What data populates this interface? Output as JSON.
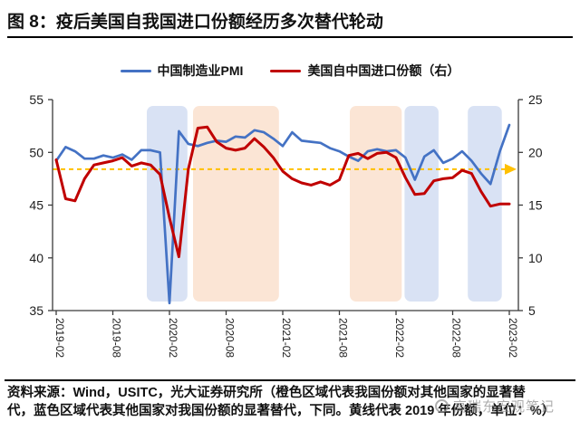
{
  "header": {
    "title": "图 8：疫后美国自我国进口份额经历多次替代轮动"
  },
  "legend": [
    {
      "label": "中国制造业PMI",
      "color": "#4472C4"
    },
    {
      "label": "美国自中国进口份额（右）",
      "color": "#C00000"
    }
  ],
  "footer": {
    "source_line1": "资料来源：Wind，USITC，光大证券研究所（橙色区域代表我国份额对其他国家的显著替",
    "source_line2": "代，蓝色区域代表其他国家对我国份额的显著替代，下同。黄线代表 2019 年份额，单位：%）"
  },
  "watermark": {
    "text": "高瑞东宏观笔记"
  },
  "chart_data": {
    "type": "line",
    "x": [
      "2019-02",
      "2019-03",
      "2019-04",
      "2019-05",
      "2019-06",
      "2019-07",
      "2019-08",
      "2019-09",
      "2019-10",
      "2019-11",
      "2019-12",
      "2020-01",
      "2020-02",
      "2020-03",
      "2020-04",
      "2020-05",
      "2020-06",
      "2020-07",
      "2020-08",
      "2020-09",
      "2020-10",
      "2020-11",
      "2020-12",
      "2021-01",
      "2021-02",
      "2021-03",
      "2021-04",
      "2021-05",
      "2021-06",
      "2021-07",
      "2021-08",
      "2021-09",
      "2021-10",
      "2021-11",
      "2021-12",
      "2022-01",
      "2022-02",
      "2022-03",
      "2022-04",
      "2022-05",
      "2022-06",
      "2022-07",
      "2022-08",
      "2022-09",
      "2022-10",
      "2022-11",
      "2022-12",
      "2023-01",
      "2023-02"
    ],
    "x_ticks": [
      "2019-02",
      "2019-08",
      "2020-02",
      "2020-08",
      "2021-02",
      "2021-08",
      "2022-02",
      "2022-08",
      "2023-02"
    ],
    "series": [
      {
        "name": "中国制造业PMI",
        "axis": "left",
        "color": "#4472C4",
        "values": [
          49.2,
          50.5,
          50.1,
          49.4,
          49.4,
          49.7,
          49.5,
          49.8,
          49.3,
          50.2,
          50.2,
          50.0,
          35.7,
          52.0,
          50.8,
          50.6,
          50.9,
          51.1,
          51.0,
          51.5,
          51.4,
          52.1,
          51.9,
          51.3,
          50.6,
          51.9,
          51.1,
          51.0,
          50.9,
          50.4,
          50.1,
          49.6,
          49.2,
          50.1,
          50.3,
          50.1,
          50.2,
          49.5,
          47.4,
          49.6,
          50.2,
          49.0,
          49.4,
          50.1,
          49.2,
          48.0,
          47.0,
          50.1,
          52.6
        ]
      },
      {
        "name": "美国自中国进口份额（右）",
        "axis": "right",
        "color": "#C00000",
        "values": [
          19.3,
          15.6,
          15.4,
          17.5,
          18.8,
          19.0,
          19.2,
          19.5,
          18.7,
          19.0,
          18.8,
          17.9,
          13.8,
          10.1,
          18.4,
          22.3,
          22.4,
          21.0,
          20.4,
          20.2,
          20.4,
          21.3,
          20.5,
          19.5,
          18.2,
          17.5,
          17.1,
          16.9,
          17.2,
          16.9,
          17.4,
          19.7,
          19.9,
          19.4,
          19.9,
          20.0,
          19.5,
          17.6,
          16.0,
          16.1,
          17.3,
          17.5,
          17.6,
          18.3,
          18.0,
          16.3,
          14.9,
          15.1,
          15.1
        ]
      }
    ],
    "left_axis": {
      "min": 35,
      "max": 55,
      "step": 5,
      "ticks": [
        55,
        50,
        45,
        40,
        35
      ]
    },
    "right_axis": {
      "min": 5,
      "max": 25,
      "step": 5,
      "ticks": [
        25,
        20,
        15,
        10,
        5
      ]
    },
    "baseline": {
      "value": 18.4,
      "axis": "right",
      "color": "#FFC000",
      "style": "dashed",
      "arrow": "right",
      "meaning": "2019年份额"
    },
    "bands": [
      {
        "color": "blue",
        "from": 9.6,
        "to": 13.9
      },
      {
        "color": "orange",
        "from": 14.5,
        "to": 23.6
      },
      {
        "color": "orange",
        "from": 31.1,
        "to": 36.6
      },
      {
        "color": "blue",
        "from": 36.9,
        "to": 40.5
      },
      {
        "color": "blue",
        "from": 43.6,
        "to": 47.2
      }
    ],
    "band_colors": {
      "blue": "#D9E2F4",
      "orange": "#FBE5D5"
    },
    "grid": false,
    "legend_position": "top"
  }
}
